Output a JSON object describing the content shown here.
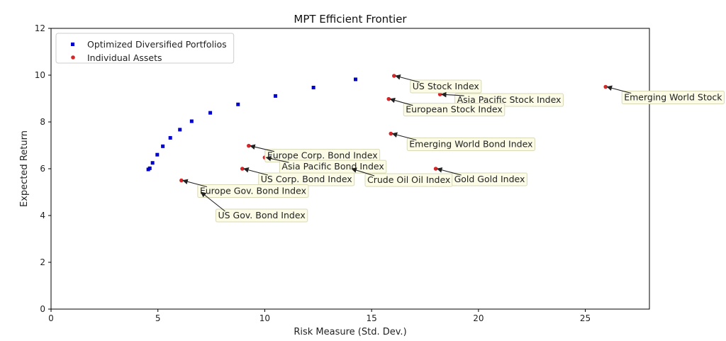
{
  "chart_data": {
    "type": "scatter",
    "title": "MPT Efficient Frontier",
    "xlabel": "Risk Measure (Std. Dev.)",
    "ylabel": "Expected Return",
    "xlim": [
      0,
      28
    ],
    "ylim": [
      0,
      12
    ],
    "xticks": [
      0,
      5,
      10,
      15,
      20,
      25
    ],
    "yticks": [
      0,
      2,
      4,
      6,
      8,
      10,
      12
    ],
    "grid": false,
    "legend_position": "top-left",
    "series": [
      {
        "name": "Optimized Diversified Portfolios",
        "color": "#0000cc",
        "marker": "square",
        "points": [
          {
            "x": 4.55,
            "y": 5.97
          },
          {
            "x": 4.62,
            "y": 6.02
          },
          {
            "x": 4.75,
            "y": 6.25
          },
          {
            "x": 4.97,
            "y": 6.6
          },
          {
            "x": 5.23,
            "y": 6.96
          },
          {
            "x": 5.58,
            "y": 7.32
          },
          {
            "x": 6.03,
            "y": 7.67
          },
          {
            "x": 6.58,
            "y": 8.03
          },
          {
            "x": 7.45,
            "y": 8.39
          },
          {
            "x": 8.75,
            "y": 8.75
          },
          {
            "x": 10.5,
            "y": 9.11
          },
          {
            "x": 12.28,
            "y": 9.47
          },
          {
            "x": 14.25,
            "y": 9.82
          }
        ]
      },
      {
        "name": "Individual Assets",
        "color": "#d62728",
        "marker": "circle",
        "points": [
          {
            "x": 16.05,
            "y": 9.97,
            "label": "US Stock Index"
          },
          {
            "x": 18.2,
            "y": 9.18,
            "label": "Asia Pacific Stock Index"
          },
          {
            "x": 25.95,
            "y": 9.5,
            "label": "Emerging World Stock"
          },
          {
            "x": 15.8,
            "y": 8.98,
            "label": "European Stock Index"
          },
          {
            "x": 15.9,
            "y": 7.5,
            "label": "Emerging World Bond Index"
          },
          {
            "x": 9.25,
            "y": 6.98,
            "label": "Europe Corp. Bond Index"
          },
          {
            "x": 10.0,
            "y": 6.48,
            "label": "Asia Pacific Bond Index"
          },
          {
            "x": 8.95,
            "y": 6.0,
            "label": "US Corp. Bond Index"
          },
          {
            "x": 14.0,
            "y": 6.0,
            "label": "Crude Oil Oil Index"
          },
          {
            "x": 18.0,
            "y": 6.0,
            "label": "Gold Gold Index"
          },
          {
            "x": 6.1,
            "y": 5.5,
            "label": "Europe Gov. Bond Index"
          },
          {
            "x": 6.95,
            "y": 5.0,
            "label": "US Gov. Bond Index"
          }
        ]
      }
    ]
  }
}
